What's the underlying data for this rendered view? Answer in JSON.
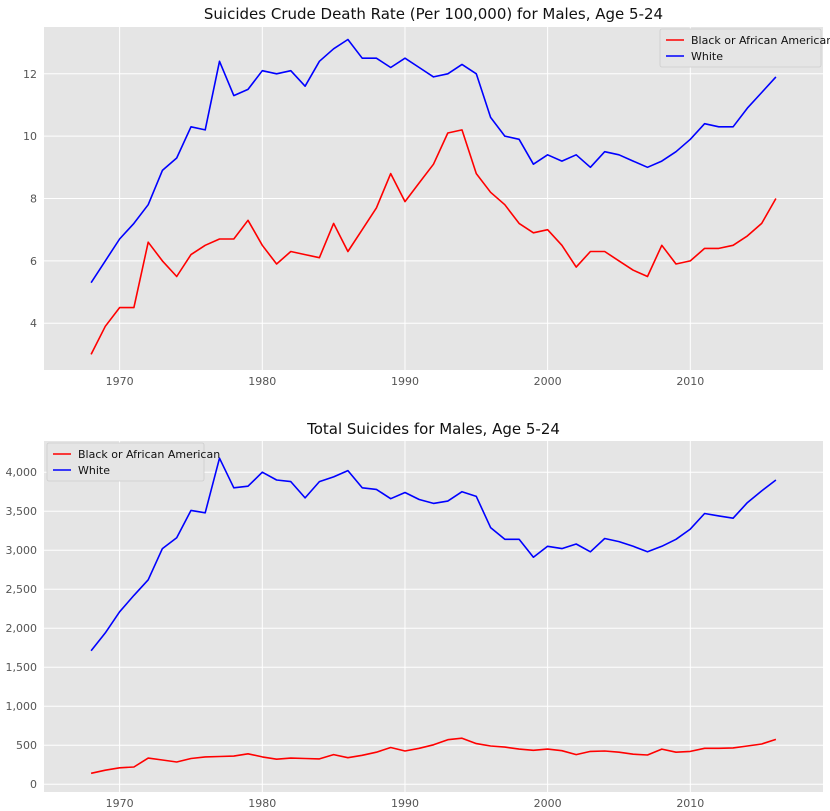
{
  "colors": {
    "plot_background": "#e5e5e5",
    "grid": "#ffffff",
    "black_series": "#ff0000",
    "white_series": "#0000ff"
  },
  "chart_data": [
    {
      "type": "line",
      "title": "Suicides Crude Death Rate (Per 100,000) for Males, Age 5-24",
      "xlabel": "",
      "ylabel": "",
      "xlim": [
        1964.7,
        2019.3
      ],
      "ylim": [
        2.5,
        13.5
      ],
      "grid": true,
      "legend_position": "top-right",
      "x_ticks": [
        1970,
        1980,
        1990,
        2000,
        2010
      ],
      "x_tick_labels": [
        "1970",
        "1980",
        "1990",
        "2000",
        "2010"
      ],
      "y_ticks": [
        4,
        6,
        8,
        10,
        12
      ],
      "y_tick_labels": [
        "4",
        "6",
        "8",
        "10",
        "12"
      ],
      "x": [
        1968,
        1969,
        1970,
        1971,
        1972,
        1973,
        1974,
        1975,
        1976,
        1977,
        1978,
        1979,
        1980,
        1981,
        1982,
        1983,
        1984,
        1985,
        1986,
        1987,
        1988,
        1989,
        1990,
        1991,
        1992,
        1993,
        1994,
        1995,
        1996,
        1997,
        1998,
        1999,
        2000,
        2001,
        2002,
        2003,
        2004,
        2005,
        2006,
        2007,
        2008,
        2009,
        2010,
        2011,
        2012,
        2013,
        2014,
        2015,
        2016
      ],
      "series": [
        {
          "name": "Black or African American",
          "color": "#ff0000",
          "values": [
            3.0,
            3.9,
            4.5,
            4.5,
            6.6,
            6.0,
            5.5,
            6.2,
            6.5,
            6.7,
            6.7,
            7.3,
            6.5,
            5.9,
            6.3,
            6.2,
            6.1,
            7.2,
            6.3,
            7.0,
            7.7,
            8.8,
            7.9,
            8.5,
            9.1,
            10.1,
            10.2,
            8.8,
            8.2,
            7.8,
            7.2,
            6.9,
            7.0,
            6.5,
            5.8,
            6.3,
            6.3,
            6.0,
            5.7,
            5.5,
            6.5,
            5.9,
            6.0,
            6.4,
            6.4,
            6.5,
            6.8,
            7.2,
            8.0
          ]
        },
        {
          "name": "White",
          "color": "#0000ff",
          "values": [
            5.3,
            6.0,
            6.7,
            7.2,
            7.8,
            8.9,
            9.3,
            10.3,
            10.2,
            12.4,
            11.3,
            11.5,
            12.1,
            12.0,
            12.1,
            11.6,
            12.4,
            12.8,
            13.1,
            12.5,
            12.5,
            12.2,
            12.5,
            12.2,
            11.9,
            12.0,
            12.3,
            12.0,
            10.6,
            10.0,
            9.9,
            9.1,
            9.4,
            9.2,
            9.4,
            9.0,
            9.5,
            9.4,
            9.2,
            9.0,
            9.2,
            9.5,
            9.9,
            10.4,
            10.3,
            10.3,
            10.9,
            11.4,
            11.9
          ]
        }
      ]
    },
    {
      "type": "line",
      "title": "Total Suicides for Males, Age 5-24",
      "xlabel": "",
      "ylabel": "",
      "xlim": [
        1964.7,
        2019.3
      ],
      "ylim": [
        -100,
        4400
      ],
      "grid": true,
      "legend_position": "top-left",
      "x_ticks": [
        1970,
        1980,
        1990,
        2000,
        2010
      ],
      "x_tick_labels": [
        "1970",
        "1980",
        "1990",
        "2000",
        "2010"
      ],
      "y_ticks": [
        0,
        500,
        1000,
        1500,
        2000,
        2500,
        3000,
        3500,
        4000
      ],
      "y_tick_labels": [
        "0",
        "500",
        "1,000",
        "1,500",
        "2,000",
        "2,500",
        "3,000",
        "3,500",
        "4,000"
      ],
      "x": [
        1968,
        1969,
        1970,
        1971,
        1972,
        1973,
        1974,
        1975,
        1976,
        1977,
        1978,
        1979,
        1980,
        1981,
        1982,
        1983,
        1984,
        1985,
        1986,
        1987,
        1988,
        1989,
        1990,
        1991,
        1992,
        1993,
        1994,
        1995,
        1996,
        1997,
        1998,
        1999,
        2000,
        2001,
        2002,
        2003,
        2004,
        2005,
        2006,
        2007,
        2008,
        2009,
        2010,
        2011,
        2012,
        2013,
        2014,
        2015,
        2016
      ],
      "series": [
        {
          "name": "Black or African American",
          "color": "#ff0000",
          "values": [
            140,
            180,
            210,
            220,
            335,
            310,
            285,
            330,
            350,
            355,
            360,
            390,
            350,
            320,
            335,
            330,
            325,
            380,
            340,
            370,
            410,
            470,
            425,
            460,
            505,
            570,
            590,
            520,
            490,
            475,
            450,
            435,
            450,
            430,
            380,
            420,
            425,
            410,
            385,
            375,
            450,
            410,
            420,
            460,
            460,
            465,
            490,
            515,
            575
          ]
        },
        {
          "name": "White",
          "color": "#0000ff",
          "values": [
            1710,
            1940,
            2210,
            2420,
            2620,
            3020,
            3160,
            3510,
            3480,
            4180,
            3800,
            3820,
            4000,
            3900,
            3880,
            3670,
            3880,
            3940,
            4020,
            3800,
            3780,
            3660,
            3740,
            3650,
            3600,
            3630,
            3750,
            3690,
            3290,
            3140,
            3140,
            2910,
            3050,
            3020,
            3080,
            2980,
            3150,
            3110,
            3050,
            2980,
            3050,
            3140,
            3270,
            3470,
            3440,
            3410,
            3610,
            3760,
            3900
          ]
        }
      ]
    }
  ]
}
